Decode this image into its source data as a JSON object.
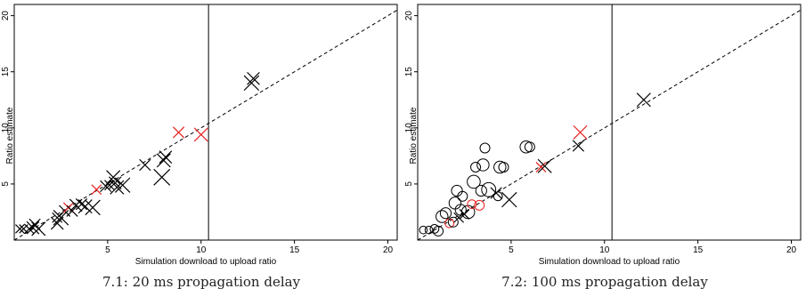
{
  "chart_data": [
    {
      "type": "scatter",
      "caption": "7.1: 20 ms propagation delay",
      "xlabel": "Simulation download to upload ratio",
      "ylabel": "Ratio estimate",
      "xlim": [
        0,
        20.5
      ],
      "ylim": [
        0,
        21
      ],
      "xticks": [
        5,
        10,
        15,
        20
      ],
      "yticks": [
        5,
        10,
        15,
        20
      ],
      "xtick_labels": [
        "5",
        "10",
        "15",
        "20"
      ],
      "ytick_labels": [
        "5",
        "10",
        "15",
        "20"
      ],
      "reference_line": "y = x (dashed)",
      "vertical_line_x": 10.4,
      "colors": {
        "black": "#000000",
        "red": "#e8201f"
      },
      "points": [
        {
          "x": 0.3,
          "y": 1.0,
          "marker": "x",
          "size": 0.4,
          "color": "black"
        },
        {
          "x": 0.5,
          "y": 1.0,
          "marker": "x",
          "size": 0.4,
          "color": "black"
        },
        {
          "x": 0.8,
          "y": 1.0,
          "marker": "x",
          "size": 0.5,
          "color": "black"
        },
        {
          "x": 1.0,
          "y": 1.1,
          "marker": "x",
          "size": 0.7,
          "color": "black"
        },
        {
          "x": 1.1,
          "y": 1.4,
          "marker": "x",
          "size": 0.6,
          "color": "black"
        },
        {
          "x": 1.3,
          "y": 1.0,
          "marker": "x",
          "size": 0.8,
          "color": "black"
        },
        {
          "x": 2.3,
          "y": 2.0,
          "marker": "x",
          "size": 0.5,
          "color": "black"
        },
        {
          "x": 2.5,
          "y": 2.0,
          "marker": "x",
          "size": 0.9,
          "color": "black"
        },
        {
          "x": 2.3,
          "y": 1.5,
          "marker": "x",
          "size": 0.7,
          "color": "black"
        },
        {
          "x": 2.7,
          "y": 2.6,
          "marker": "x",
          "size": 0.6,
          "color": "black"
        },
        {
          "x": 2.9,
          "y": 2.9,
          "marker": "x",
          "size": 0.5,
          "color": "red"
        },
        {
          "x": 3.1,
          "y": 2.6,
          "marker": "x",
          "size": 0.6,
          "color": "black"
        },
        {
          "x": 3.3,
          "y": 3.1,
          "marker": "x",
          "size": 0.7,
          "color": "black"
        },
        {
          "x": 3.6,
          "y": 3.2,
          "marker": "x",
          "size": 0.6,
          "color": "black"
        },
        {
          "x": 3.8,
          "y": 3.0,
          "marker": "x",
          "size": 0.8,
          "color": "black"
        },
        {
          "x": 4.2,
          "y": 2.9,
          "marker": "x",
          "size": 0.9,
          "color": "black"
        },
        {
          "x": 4.4,
          "y": 4.5,
          "marker": "x",
          "size": 0.5,
          "color": "red"
        },
        {
          "x": 4.9,
          "y": 4.8,
          "marker": "x",
          "size": 0.6,
          "color": "black"
        },
        {
          "x": 5.1,
          "y": 4.9,
          "marker": "x",
          "size": 0.5,
          "color": "black"
        },
        {
          "x": 5.3,
          "y": 5.6,
          "marker": "x",
          "size": 0.8,
          "color": "black"
        },
        {
          "x": 5.4,
          "y": 5.1,
          "marker": "x",
          "size": 0.7,
          "color": "black"
        },
        {
          "x": 5.5,
          "y": 4.7,
          "marker": "x",
          "size": 0.8,
          "color": "black"
        },
        {
          "x": 5.8,
          "y": 4.9,
          "marker": "x",
          "size": 0.9,
          "color": "black"
        },
        {
          "x": 7.0,
          "y": 6.7,
          "marker": "x",
          "size": 0.6,
          "color": "black"
        },
        {
          "x": 7.9,
          "y": 5.6,
          "marker": "x",
          "size": 1.0,
          "color": "black"
        },
        {
          "x": 8.0,
          "y": 7.1,
          "marker": "x",
          "size": 0.8,
          "color": "black"
        },
        {
          "x": 8.1,
          "y": 7.4,
          "marker": "x",
          "size": 0.7,
          "color": "black"
        },
        {
          "x": 8.8,
          "y": 9.6,
          "marker": "x",
          "size": 0.6,
          "color": "red"
        },
        {
          "x": 10.0,
          "y": 9.4,
          "marker": "x",
          "size": 0.8,
          "color": "red"
        },
        {
          "x": 12.7,
          "y": 14.0,
          "marker": "x",
          "size": 0.9,
          "color": "black"
        },
        {
          "x": 12.8,
          "y": 14.4,
          "marker": "x",
          "size": 0.7,
          "color": "black"
        }
      ]
    },
    {
      "type": "scatter",
      "caption": "7.2: 100 ms propagation delay",
      "xlabel": "Simulation download to upload ratio",
      "ylabel": "Ratio estimate",
      "xlim": [
        0,
        20.5
      ],
      "ylim": [
        0,
        21
      ],
      "xticks": [
        5,
        10,
        15,
        20
      ],
      "yticks": [
        5,
        10,
        15,
        20
      ],
      "xtick_labels": [
        "5",
        "10",
        "15",
        "20"
      ],
      "ytick_labels": [
        "5",
        "10",
        "15",
        "20"
      ],
      "reference_line": "y = x (dashed)",
      "vertical_line_x": 10.4,
      "colors": {
        "black": "#000000",
        "red": "#e8201f"
      },
      "points": [
        {
          "x": 0.3,
          "y": 0.9,
          "marker": "o",
          "size": 0.3,
          "color": "black"
        },
        {
          "x": 0.6,
          "y": 0.9,
          "marker": "o",
          "size": 0.3,
          "color": "black"
        },
        {
          "x": 0.9,
          "y": 1.0,
          "marker": "o",
          "size": 0.4,
          "color": "black"
        },
        {
          "x": 1.1,
          "y": 0.8,
          "marker": "o",
          "size": 0.5,
          "color": "black"
        },
        {
          "x": 1.3,
          "y": 2.1,
          "marker": "o",
          "size": 0.7,
          "color": "black"
        },
        {
          "x": 1.5,
          "y": 2.4,
          "marker": "o",
          "size": 0.6,
          "color": "black"
        },
        {
          "x": 1.7,
          "y": 1.5,
          "marker": "o",
          "size": 0.4,
          "color": "red"
        },
        {
          "x": 1.9,
          "y": 1.6,
          "marker": "o",
          "size": 0.5,
          "color": "black"
        },
        {
          "x": 2.0,
          "y": 3.3,
          "marker": "o",
          "size": 0.7,
          "color": "black"
        },
        {
          "x": 2.1,
          "y": 4.4,
          "marker": "o",
          "size": 0.6,
          "color": "black"
        },
        {
          "x": 2.2,
          "y": 2.0,
          "marker": "x",
          "size": 0.5,
          "color": "black"
        },
        {
          "x": 2.3,
          "y": 2.7,
          "marker": "o",
          "size": 0.6,
          "color": "black"
        },
        {
          "x": 2.4,
          "y": 3.9,
          "marker": "o",
          "size": 0.5,
          "color": "black"
        },
        {
          "x": 2.5,
          "y": 2.3,
          "marker": "x",
          "size": 0.5,
          "color": "black"
        },
        {
          "x": 2.7,
          "y": 2.5,
          "marker": "o",
          "size": 0.8,
          "color": "black"
        },
        {
          "x": 2.9,
          "y": 3.2,
          "marker": "o",
          "size": 0.4,
          "color": "red"
        },
        {
          "x": 3.0,
          "y": 5.2,
          "marker": "o",
          "size": 0.8,
          "color": "black"
        },
        {
          "x": 3.1,
          "y": 6.5,
          "marker": "o",
          "size": 0.5,
          "color": "black"
        },
        {
          "x": 3.3,
          "y": 3.1,
          "marker": "o",
          "size": 0.5,
          "color": "red"
        },
        {
          "x": 3.4,
          "y": 4.4,
          "marker": "o",
          "size": 0.6,
          "color": "black"
        },
        {
          "x": 3.5,
          "y": 6.7,
          "marker": "o",
          "size": 0.7,
          "color": "black"
        },
        {
          "x": 3.6,
          "y": 8.2,
          "marker": "o",
          "size": 0.5,
          "color": "black"
        },
        {
          "x": 3.8,
          "y": 4.5,
          "marker": "o",
          "size": 0.9,
          "color": "black"
        },
        {
          "x": 4.2,
          "y": 4.2,
          "marker": "x",
          "size": 0.6,
          "color": "black"
        },
        {
          "x": 4.3,
          "y": 3.9,
          "marker": "o",
          "size": 0.4,
          "color": "black"
        },
        {
          "x": 4.4,
          "y": 6.5,
          "marker": "o",
          "size": 0.7,
          "color": "black"
        },
        {
          "x": 4.6,
          "y": 6.5,
          "marker": "o",
          "size": 0.5,
          "color": "black"
        },
        {
          "x": 4.9,
          "y": 3.6,
          "marker": "x",
          "size": 0.9,
          "color": "black"
        },
        {
          "x": 5.8,
          "y": 8.3,
          "marker": "o",
          "size": 0.7,
          "color": "black"
        },
        {
          "x": 6.0,
          "y": 8.3,
          "marker": "o",
          "size": 0.5,
          "color": "black"
        },
        {
          "x": 6.6,
          "y": 6.5,
          "marker": "x",
          "size": 0.5,
          "color": "red"
        },
        {
          "x": 6.8,
          "y": 6.6,
          "marker": "x",
          "size": 0.8,
          "color": "black"
        },
        {
          "x": 8.6,
          "y": 8.4,
          "marker": "x",
          "size": 0.6,
          "color": "black"
        },
        {
          "x": 8.7,
          "y": 9.6,
          "marker": "x",
          "size": 0.8,
          "color": "red"
        },
        {
          "x": 12.1,
          "y": 12.5,
          "marker": "x",
          "size": 0.8,
          "color": "black"
        }
      ]
    }
  ]
}
